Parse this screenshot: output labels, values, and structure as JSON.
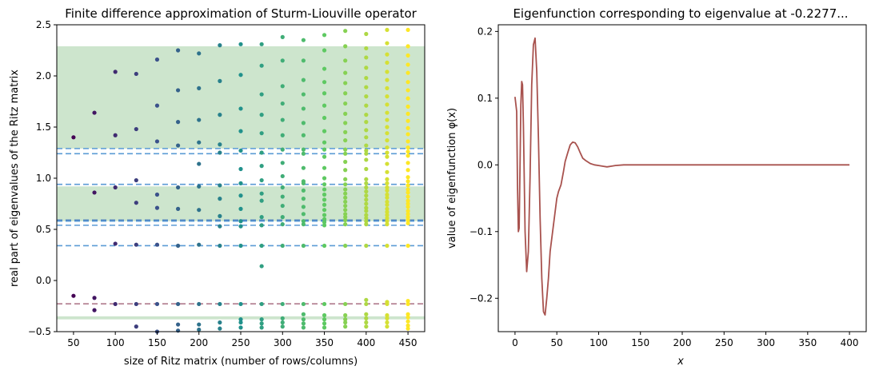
{
  "chart_data": [
    {
      "type": "scatter",
      "title": "Finite difference approximation of Sturm-Liouville operator",
      "xlabel": "size of Ritz matrix (number of rows/columns)",
      "ylabel": "real part of eigenvalues of the Ritz matrix",
      "xlim": [
        30,
        470
      ],
      "ylim": [
        -0.5,
        2.5
      ],
      "x_ticks": [
        50,
        100,
        150,
        200,
        250,
        300,
        350,
        400,
        450
      ],
      "y_ticks": [
        -0.5,
        0.0,
        0.5,
        1.0,
        1.5,
        2.0,
        2.5
      ],
      "shaded_bands": [
        {
          "y0": 1.29,
          "y1": 2.29,
          "color": "#cde5cd"
        },
        {
          "y0": 0.58,
          "y1": 0.92,
          "color": "#cde5cd"
        },
        {
          "y0": -0.38,
          "y1": -0.35,
          "color": "#cde5cd"
        }
      ],
      "hlines": [
        {
          "y": 1.29,
          "color": "#5b9bd5"
        },
        {
          "y": 1.24,
          "color": "#5b9bd5"
        },
        {
          "y": 0.94,
          "color": "#5b9bd5"
        },
        {
          "y": 0.59,
          "color": "#4a7fbf"
        },
        {
          "y": 0.58,
          "color": "#5b9bd5"
        },
        {
          "y": 0.54,
          "color": "#5b9bd5"
        },
        {
          "y": 0.34,
          "color": "#5b9bd5"
        },
        {
          "y": -0.2277,
          "color": "#b07a8c"
        }
      ],
      "colormap": "viridis",
      "points": [
        {
          "x": 50,
          "y": [
            1.4,
            -0.15
          ]
        },
        {
          "x": 75,
          "y": [
            1.64,
            0.86,
            -0.17,
            -0.29
          ]
        },
        {
          "x": 100,
          "y": [
            2.04,
            1.42,
            0.91,
            0.36,
            -0.23
          ]
        },
        {
          "x": 125,
          "y": [
            2.02,
            1.48,
            0.98,
            0.76,
            0.35,
            -0.23,
            -0.45
          ]
        },
        {
          "x": 150,
          "y": [
            2.16,
            1.71,
            1.36,
            0.84,
            0.71,
            0.35,
            -0.23,
            -0.5
          ]
        },
        {
          "x": 175,
          "y": [
            2.25,
            1.86,
            1.55,
            1.32,
            0.91,
            0.7,
            0.34,
            -0.23,
            -0.43,
            -0.49
          ]
        },
        {
          "x": 200,
          "y": [
            2.22,
            1.88,
            1.57,
            1.35,
            1.14,
            0.92,
            0.69,
            0.35,
            -0.23,
            -0.43,
            -0.48
          ]
        },
        {
          "x": 225,
          "y": [
            2.3,
            1.95,
            1.62,
            1.33,
            1.25,
            0.93,
            0.8,
            0.63,
            0.53,
            0.34,
            -0.23,
            -0.41,
            -0.47
          ]
        },
        {
          "x": 250,
          "y": [
            2.31,
            2.01,
            1.68,
            1.46,
            1.27,
            1.09,
            0.95,
            0.83,
            0.7,
            0.58,
            0.53,
            0.34,
            -0.23,
            -0.38,
            -0.41,
            -0.46
          ]
        },
        {
          "x": 275,
          "y": [
            2.31,
            2.1,
            1.82,
            1.62,
            1.44,
            1.25,
            1.12,
            0.98,
            0.85,
            0.78,
            0.62,
            0.54,
            0.34,
            0.14,
            -0.23,
            -0.38,
            -0.42,
            -0.46
          ]
        },
        {
          "x": 300,
          "y": [
            2.38,
            2.15,
            1.9,
            1.73,
            1.57,
            1.42,
            1.28,
            1.15,
            1.02,
            0.91,
            0.82,
            0.73,
            0.62,
            0.55,
            0.34,
            -0.23,
            -0.37,
            -0.41,
            -0.45
          ]
        },
        {
          "x": 325,
          "y": [
            2.35,
            2.15,
            1.96,
            1.82,
            1.68,
            1.54,
            1.42,
            1.28,
            1.24,
            1.1,
            0.97,
            0.95,
            0.88,
            0.8,
            0.72,
            0.65,
            0.58,
            0.55,
            0.34,
            -0.23,
            -0.33,
            -0.38,
            -0.42,
            -0.46
          ]
        },
        {
          "x": 350,
          "y": [
            2.4,
            2.25,
            2.07,
            1.94,
            1.83,
            1.71,
            1.59,
            1.46,
            1.35,
            1.28,
            1.21,
            1.1,
            1.0,
            0.94,
            0.89,
            0.84,
            0.79,
            0.74,
            0.69,
            0.64,
            0.6,
            0.57,
            0.54,
            0.34,
            -0.23,
            -0.34,
            -0.38,
            -0.42,
            -0.46
          ]
        },
        {
          "x": 375,
          "y": [
            2.44,
            2.29,
            2.15,
            2.03,
            1.93,
            1.83,
            1.73,
            1.63,
            1.54,
            1.45,
            1.37,
            1.28,
            1.24,
            1.16,
            1.08,
            0.99,
            0.94,
            0.89,
            0.85,
            0.81,
            0.77,
            0.73,
            0.69,
            0.65,
            0.62,
            0.59,
            0.55,
            0.34,
            -0.23,
            -0.34,
            -0.38,
            -0.41,
            -0.45
          ]
        },
        {
          "x": 400,
          "y": [
            2.41,
            2.27,
            2.18,
            2.08,
            1.98,
            1.89,
            1.8,
            1.71,
            1.62,
            1.55,
            1.47,
            1.4,
            1.32,
            1.27,
            1.24,
            1.18,
            1.09,
            0.99,
            0.95,
            0.91,
            0.87,
            0.83,
            0.79,
            0.75,
            0.71,
            0.68,
            0.64,
            0.61,
            0.58,
            0.55,
            0.34,
            -0.19,
            -0.23,
            -0.33,
            -0.37,
            -0.41,
            -0.45
          ]
        },
        {
          "x": 425,
          "y": [
            2.45,
            2.32,
            2.21,
            2.13,
            2.04,
            1.96,
            1.88,
            1.8,
            1.72,
            1.64,
            1.57,
            1.5,
            1.44,
            1.37,
            1.3,
            1.25,
            1.21,
            1.14,
            1.06,
            0.99,
            0.95,
            0.91,
            0.88,
            0.84,
            0.81,
            0.77,
            0.74,
            0.7,
            0.67,
            0.64,
            0.61,
            0.58,
            0.55,
            0.34,
            -0.21,
            -0.23,
            -0.34,
            -0.37,
            -0.41,
            -0.45
          ]
        },
        {
          "x": 450,
          "y": [
            2.45,
            2.29,
            2.2,
            2.11,
            2.03,
            1.94,
            1.86,
            1.78,
            1.7,
            1.63,
            1.56,
            1.49,
            1.43,
            1.36,
            1.3,
            1.26,
            1.22,
            1.15,
            1.08,
            1.01,
            0.97,
            0.93,
            0.89,
            0.86,
            0.82,
            0.78,
            0.75,
            0.72,
            0.68,
            0.65,
            0.62,
            0.59,
            0.56,
            0.34,
            -0.2,
            -0.23,
            -0.33,
            -0.36,
            -0.4,
            -0.44,
            -0.47
          ]
        }
      ]
    },
    {
      "type": "line",
      "title": "Eigenfunction corresponding to eigenvalue at -0.2277...",
      "xlabel": "x",
      "ylabel": "value of eigenfunction φ(x)",
      "xlim": [
        -20,
        420
      ],
      "ylim": [
        -0.25,
        0.21
      ],
      "x_ticks": [
        0,
        50,
        100,
        150,
        200,
        250,
        300,
        350,
        400
      ],
      "y_ticks": [
        -0.2,
        -0.1,
        0.0,
        0.1,
        0.2
      ],
      "series_color": "#a8524e",
      "x": [
        0,
        2,
        3,
        4,
        5,
        6,
        7,
        8,
        9,
        10,
        12,
        14,
        16,
        18,
        20,
        22,
        24,
        26,
        28,
        30,
        32,
        34,
        36,
        38,
        40,
        42,
        44,
        46,
        48,
        50,
        52,
        55,
        58,
        60,
        63,
        66,
        69,
        72,
        75,
        78,
        81,
        85,
        90,
        95,
        100,
        105,
        110,
        115,
        120,
        130,
        140,
        150,
        175,
        200,
        250,
        300,
        350,
        400
      ],
      "y": [
        0.102,
        0.08,
        -0.03,
        -0.1,
        -0.095,
        0.0,
        0.09,
        0.125,
        0.12,
        0.06,
        -0.1,
        -0.16,
        -0.13,
        -0.02,
        0.12,
        0.18,
        0.19,
        0.14,
        0.04,
        -0.08,
        -0.17,
        -0.22,
        -0.225,
        -0.2,
        -0.17,
        -0.13,
        -0.11,
        -0.09,
        -0.07,
        -0.05,
        -0.04,
        -0.03,
        -0.01,
        0.005,
        0.018,
        0.03,
        0.034,
        0.033,
        0.027,
        0.018,
        0.01,
        0.006,
        0.002,
        0.0,
        -0.001,
        -0.002,
        -0.003,
        -0.002,
        -0.001,
        0.0,
        0.0,
        0.0,
        0.0,
        0.0,
        0.0,
        0.0,
        0.0,
        0.0
      ]
    }
  ]
}
